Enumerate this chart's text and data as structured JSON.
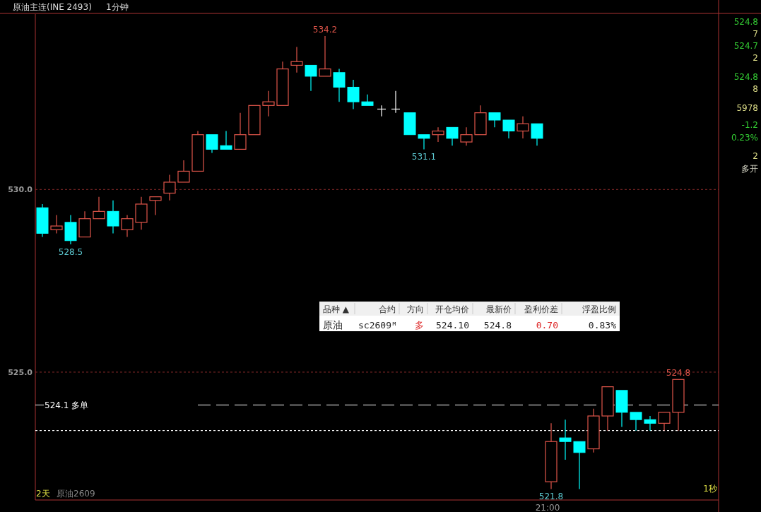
{
  "chart_data": [
    {
      "type": "candlestick",
      "title": "原油主连(INE 2493)",
      "subtitle": "1分钟",
      "categories": [
        null,
        null,
        null,
        null,
        null,
        null,
        null,
        null,
        null,
        null,
        null,
        null,
        null,
        null,
        null,
        null,
        null,
        null,
        null,
        null,
        null,
        null,
        null,
        null,
        null,
        null,
        null,
        null,
        null,
        null,
        null,
        null,
        null,
        null,
        null,
        null,
        "21:00",
        null,
        null,
        null,
        null,
        null,
        null,
        null,
        null,
        null
      ],
      "ohlc": [
        [
          529.5,
          529.6,
          528.7,
          528.8
        ],
        [
          528.9,
          529.3,
          528.8,
          529.0
        ],
        [
          529.1,
          529.3,
          528.5,
          528.6
        ],
        [
          528.7,
          529.4,
          528.7,
          529.2
        ],
        [
          529.2,
          529.8,
          529.2,
          529.4
        ],
        [
          529.4,
          529.7,
          528.8,
          529.0
        ],
        [
          528.9,
          529.3,
          528.7,
          529.2
        ],
        [
          529.1,
          529.8,
          528.9,
          529.6
        ],
        [
          529.7,
          529.8,
          529.3,
          529.8
        ],
        [
          529.9,
          530.4,
          529.7,
          530.2
        ],
        [
          530.2,
          530.8,
          530.2,
          530.5
        ],
        [
          530.5,
          531.6,
          530.5,
          531.5
        ],
        [
          531.5,
          531.5,
          531.0,
          531.1
        ],
        [
          531.2,
          531.6,
          531.1,
          531.1
        ],
        [
          531.1,
          532.1,
          531.1,
          531.5
        ],
        [
          531.5,
          532.3,
          531.5,
          532.3
        ],
        [
          532.3,
          532.7,
          532.0,
          532.4
        ],
        [
          532.3,
          533.5,
          532.3,
          533.3
        ],
        [
          533.4,
          533.9,
          533.2,
          533.5
        ],
        [
          533.4,
          533.4,
          532.7,
          533.1
        ],
        [
          533.1,
          534.2,
          533.1,
          533.3
        ],
        [
          533.2,
          533.3,
          532.4,
          532.8
        ],
        [
          532.8,
          533.0,
          532.2,
          532.4
        ],
        [
          532.4,
          532.6,
          532.3,
          532.3
        ],
        [
          532.2,
          532.3,
          532.0,
          532.2
        ],
        [
          532.2,
          532.7,
          532.1,
          532.2
        ],
        [
          532.1,
          532.1,
          531.5,
          531.5
        ],
        [
          531.5,
          531.5,
          531.1,
          531.4
        ],
        [
          531.5,
          531.7,
          531.3,
          531.6
        ],
        [
          531.7,
          531.7,
          531.2,
          531.4
        ],
        [
          531.3,
          531.7,
          531.2,
          531.5
        ],
        [
          531.5,
          532.3,
          531.5,
          532.1
        ],
        [
          532.1,
          532.1,
          531.7,
          531.9
        ],
        [
          531.9,
          531.9,
          531.4,
          531.6
        ],
        [
          531.6,
          532.0,
          531.4,
          531.8
        ],
        [
          531.8,
          531.8,
          531.2,
          531.4
        ],
        [
          522.0,
          523.6,
          521.8,
          523.1
        ],
        [
          523.2,
          523.7,
          522.6,
          523.1
        ],
        [
          523.1,
          523.1,
          521.8,
          522.8
        ],
        [
          522.9,
          524.0,
          522.8,
          523.8
        ],
        [
          523.8,
          524.6,
          523.4,
          524.6
        ],
        [
          524.5,
          524.5,
          523.5,
          523.9
        ],
        [
          523.9,
          523.9,
          523.4,
          523.7
        ],
        [
          523.7,
          523.8,
          523.4,
          523.6
        ],
        [
          523.6,
          523.9,
          523.4,
          523.9
        ],
        [
          523.9,
          524.8,
          523.4,
          524.8
        ]
      ],
      "colors": [
        "#00ffff",
        "#e0554a",
        "#00ffff",
        "#e0554a",
        "#e0554a",
        "#00ffff",
        "#e0554a",
        "#e0554a",
        "#e0554a",
        "#e0554a",
        "#e0554a",
        "#e0554a",
        "#00ffff",
        "#00ffff",
        "#e0554a",
        "#e0554a",
        "#e0554a",
        "#e0554a",
        "#e0554a",
        "#00ffff",
        "#e0554a",
        "#00ffff",
        "#00ffff",
        "#00ffff",
        "#ffffff",
        "#ffffff",
        "#00ffff",
        "#00ffff",
        "#e0554a",
        "#00ffff",
        "#e0554a",
        "#e0554a",
        "#00ffff",
        "#00ffff",
        "#e0554a",
        "#00ffff",
        "#e0554a",
        "#00ffff",
        "#00ffff",
        "#e0554a",
        "#e0554a",
        "#00ffff",
        "#00ffff",
        "#00ffff",
        "#e0554a",
        "#e0554a"
      ],
      "ylim": [
        521.5,
        534.8
      ],
      "yticks": [
        {
          "value": 525,
          "label": "525.0"
        },
        {
          "value": 530,
          "label": "530.0"
        }
      ],
      "grid": "y",
      "ref_lines": [
        {
          "axis": "y",
          "value": 524.1,
          "label": "524.1 多单",
          "color": "#ffffff",
          "line_style": "dashed"
        },
        {
          "axis": "y",
          "value": 523.4,
          "color": "#ffffff",
          "line_style": "dotted"
        }
      ],
      "annotations": [
        {
          "text": "528.5",
          "y": 528.5
        },
        {
          "text": "534.2",
          "y": 534.2
        },
        {
          "text": "531.1",
          "y": 531.1
        },
        {
          "text": "521.8",
          "y": 521.8
        },
        {
          "text": "524.8",
          "y": 524.8
        },
        "2天",
        "原油2609",
        "1秒"
      ]
    },
    {
      "type": "other",
      "annotations": [
        "品种 ▲",
        "合约",
        "方向",
        "开仓均价",
        "最新价",
        "盈利价差",
        "浮盈比例",
        "原油",
        "sc2609ᴹ",
        "多",
        "524.10",
        "524.8",
        "0.70",
        "0.83%"
      ]
    },
    {
      "type": "other",
      "annotations": [
        "524.8",
        "7",
        "524.7",
        "2",
        "524.8",
        "8",
        "5978",
        "-1.2",
        "0.23%",
        "2",
        "多开"
      ]
    }
  ]
}
